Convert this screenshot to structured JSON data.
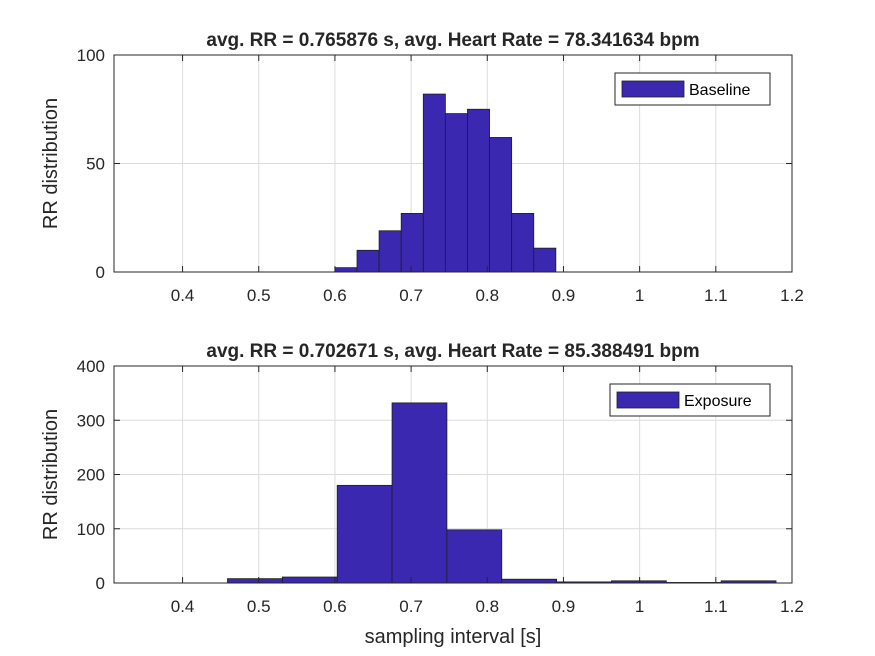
{
  "chart_data": [
    {
      "type": "bar",
      "subtype": "histogram",
      "title": "avg. RR = 0.765876 s, avg. Heart Rate = 78.341634 bpm",
      "ylabel": "RR distribution",
      "xlabel": "",
      "xlim": [
        0.31,
        1.2
      ],
      "ylim": [
        0,
        100
      ],
      "xticks": [
        "0.4",
        "0.5",
        "0.6",
        "0.7",
        "0.8",
        "0.9",
        "1",
        "1.1",
        "1.2"
      ],
      "yticks": [
        "0",
        "50",
        "100"
      ],
      "grid": true,
      "legend_position": "top-right",
      "bar_color": "#3b28b0",
      "edge_color": "#1e1e1e",
      "series": [
        {
          "name": "Baseline",
          "bins": [
            {
              "start": 0.6,
              "end": 0.629,
              "value": 2
            },
            {
              "start": 0.629,
              "end": 0.658,
              "value": 10
            },
            {
              "start": 0.658,
              "end": 0.687,
              "value": 19
            },
            {
              "start": 0.687,
              "end": 0.716,
              "value": 27
            },
            {
              "start": 0.716,
              "end": 0.745,
              "value": 82
            },
            {
              "start": 0.745,
              "end": 0.774,
              "value": 73
            },
            {
              "start": 0.774,
              "end": 0.803,
              "value": 75
            },
            {
              "start": 0.803,
              "end": 0.832,
              "value": 62
            },
            {
              "start": 0.832,
              "end": 0.861,
              "value": 27
            },
            {
              "start": 0.861,
              "end": 0.89,
              "value": 11
            }
          ]
        }
      ]
    },
    {
      "type": "bar",
      "subtype": "histogram",
      "title": "avg. RR = 0.702671 s, avg. Heart Rate = 85.388491 bpm",
      "ylabel": "RR distribution",
      "xlabel": "sampling interval [s]",
      "xlim": [
        0.31,
        1.2
      ],
      "ylim": [
        0,
        400
      ],
      "xticks": [
        "0.4",
        "0.5",
        "0.6",
        "0.7",
        "0.8",
        "0.9",
        "1",
        "1.1",
        "1.2"
      ],
      "yticks": [
        "0",
        "100",
        "200",
        "300",
        "400"
      ],
      "grid": true,
      "legend_position": "top-right",
      "bar_color": "#3b28b0",
      "edge_color": "#1e1e1e",
      "series": [
        {
          "name": "Exposure",
          "bins": [
            {
              "start": 0.459,
              "end": 0.531,
              "value": 8
            },
            {
              "start": 0.531,
              "end": 0.603,
              "value": 11
            },
            {
              "start": 0.603,
              "end": 0.675,
              "value": 180
            },
            {
              "start": 0.675,
              "end": 0.747,
              "value": 332
            },
            {
              "start": 0.747,
              "end": 0.819,
              "value": 98
            },
            {
              "start": 0.819,
              "end": 0.891,
              "value": 7
            },
            {
              "start": 0.891,
              "end": 0.963,
              "value": 2
            },
            {
              "start": 0.963,
              "end": 1.035,
              "value": 4
            },
            {
              "start": 1.035,
              "end": 1.107,
              "value": 1
            },
            {
              "start": 1.107,
              "end": 1.179,
              "value": 4
            }
          ]
        }
      ]
    }
  ]
}
